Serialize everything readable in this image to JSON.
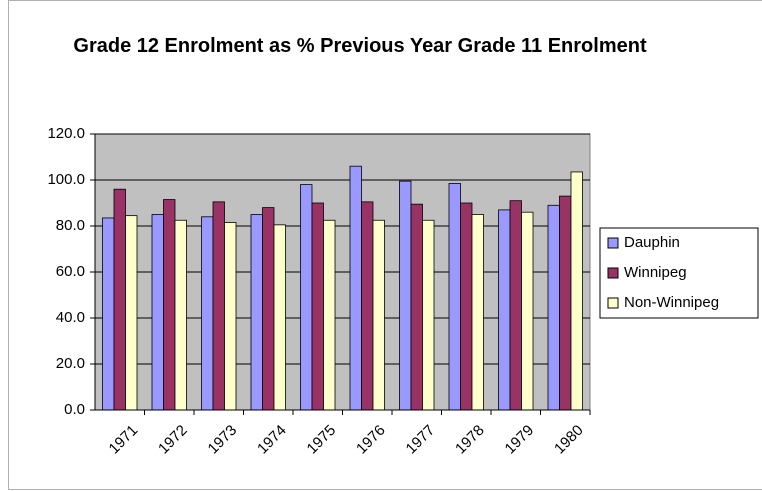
{
  "chart_data": {
    "type": "bar",
    "title": "Grade 12 Enrolment as % Previous Year Grade 11 Enrolment",
    "categories": [
      "1971",
      "1972",
      "1973",
      "1974",
      "1975",
      "1976",
      "1977",
      "1978",
      "1979",
      "1980"
    ],
    "series": [
      {
        "name": "Dauphin",
        "color": "#9999ff",
        "values": [
          83.5,
          85,
          84,
          85,
          98,
          106,
          99.5,
          98.5,
          87,
          89
        ]
      },
      {
        "name": "Winnipeg",
        "color": "#993366",
        "values": [
          96,
          91.5,
          90.5,
          88,
          90,
          90.5,
          89.5,
          90,
          91,
          93
        ]
      },
      {
        "name": "Non-Winnipeg",
        "color": "#ffffcc",
        "values": [
          84.5,
          82.5,
          81.5,
          80.5,
          82.5,
          82.5,
          82.5,
          85,
          86,
          103.5
        ]
      }
    ],
    "ylim": [
      0,
      120
    ],
    "yticks": [
      {
        "value": 0,
        "label": "0.0"
      },
      {
        "value": 20,
        "label": "20.0"
      },
      {
        "value": 40,
        "label": "40.0"
      },
      {
        "value": 60,
        "label": "60.0"
      },
      {
        "value": 80,
        "label": "80.0"
      },
      {
        "value": 100,
        "label": "100.0"
      },
      {
        "value": 120,
        "label": "120.0"
      }
    ],
    "grid": true,
    "legend": "right",
    "plot_background": "#c0c0c0"
  }
}
